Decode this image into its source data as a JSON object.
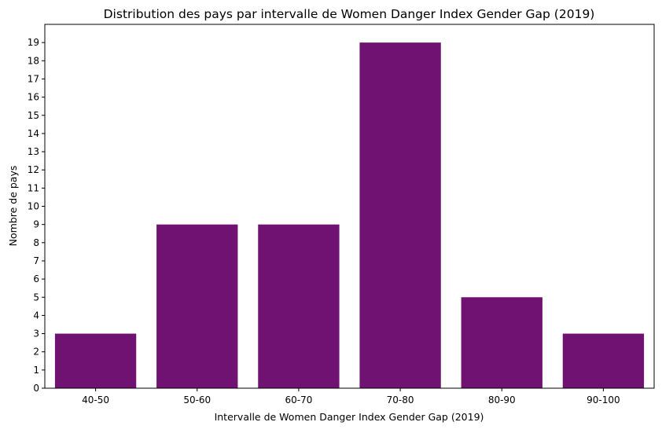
{
  "chart_data": {
    "type": "bar",
    "title": "Distribution des pays par intervalle de Women Danger Index Gender Gap (2019)",
    "xlabel": "Intervalle de Women Danger Index Gender Gap (2019)",
    "ylabel": "Nombre de pays",
    "categories": [
      "40-50",
      "50-60",
      "60-70",
      "70-80",
      "80-90",
      "90-100"
    ],
    "values": [
      3,
      9,
      9,
      19,
      5,
      3
    ],
    "ylim": [
      0,
      20
    ],
    "yticks": [
      0,
      1,
      2,
      3,
      4,
      5,
      6,
      7,
      8,
      9,
      10,
      11,
      12,
      13,
      14,
      15,
      16,
      17,
      18,
      19
    ],
    "grid": false,
    "legend": "none",
    "bar_color": "#701271"
  }
}
